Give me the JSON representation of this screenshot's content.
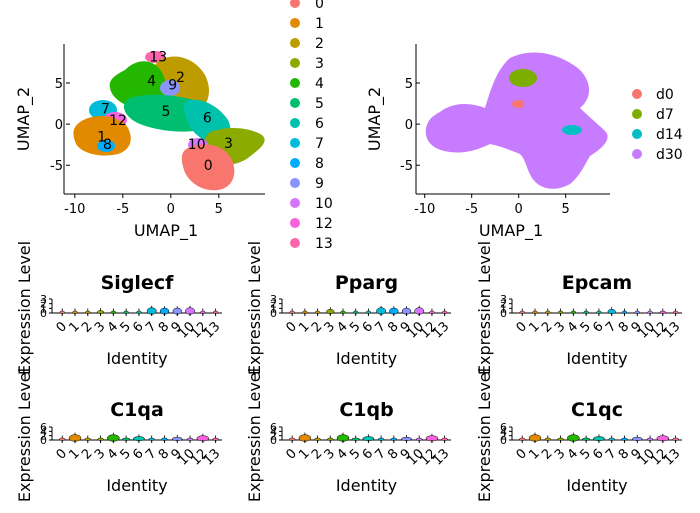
{
  "chart_data": [
    {
      "type": "scatter",
      "panel": "umap-clusters",
      "xlabel": "UMAP_1",
      "ylabel": "UMAP_2",
      "xlim": [
        -10.5,
        9.5
      ],
      "ylim": [
        -8.5,
        9.5
      ],
      "xticks": [
        -10,
        -5,
        0,
        5
      ],
      "xtick_labels": [
        "-10",
        "-5",
        "0",
        "5"
      ],
      "yticks": [
        -5,
        0,
        5
      ],
      "ytick_labels": [
        "-5",
        "0",
        "5"
      ],
      "legend_placement": "top-center",
      "legend": [
        {
          "label": "0",
          "color": "#F8766D"
        },
        {
          "label": "1",
          "color": "#E18A00"
        },
        {
          "label": "2",
          "color": "#BE9C00"
        },
        {
          "label": "3",
          "color": "#8CAB00"
        },
        {
          "label": "4",
          "color": "#24B700"
        },
        {
          "label": "5",
          "color": "#00BE70"
        },
        {
          "label": "6",
          "color": "#00C1AB"
        },
        {
          "label": "7",
          "color": "#00BBDA"
        },
        {
          "label": "8",
          "color": "#00ACFC"
        },
        {
          "label": "9",
          "color": "#8B93FF"
        },
        {
          "label": "10",
          "color": "#D575FE"
        },
        {
          "label": "12",
          "color": "#F962DD"
        },
        {
          "label": "13",
          "color": "#FF65AC"
        }
      ],
      "cluster_labels": [
        {
          "label": "13",
          "x": -1.3,
          "y": 8.2,
          "color": "#FF65AC"
        },
        {
          "label": "2",
          "x": 1.0,
          "y": 5.7,
          "color": "#BE9C00"
        },
        {
          "label": "4",
          "x": -2.0,
          "y": 5.3,
          "color": "#24B700"
        },
        {
          "label": "9",
          "x": 0.2,
          "y": 4.8,
          "color": "#8B93FF"
        },
        {
          "label": "7",
          "x": -6.8,
          "y": 1.9,
          "color": "#00BBDA"
        },
        {
          "label": "5",
          "x": -0.5,
          "y": 1.6,
          "color": "#00BE70"
        },
        {
          "label": "12",
          "x": -5.5,
          "y": 0.5,
          "color": "#F962DD"
        },
        {
          "label": "6",
          "x": 3.8,
          "y": 0.8,
          "color": "#00C1AB"
        },
        {
          "label": "1",
          "x": -7.2,
          "y": -1.5,
          "color": "#E18A00"
        },
        {
          "label": "8",
          "x": -6.6,
          "y": -2.4,
          "color": "#00ACFC"
        },
        {
          "label": "10",
          "x": 2.7,
          "y": -2.4,
          "color": "#D575FE"
        },
        {
          "label": "3",
          "x": 6.0,
          "y": -2.3,
          "color": "#8CAB00"
        },
        {
          "label": "0",
          "x": 3.9,
          "y": -5.0,
          "color": "#F8766D"
        }
      ]
    },
    {
      "type": "scatter",
      "panel": "umap-timepoints",
      "xlabel": "UMAP_1",
      "ylabel": "UMAP_2",
      "xlim": [
        -10.5,
        9.5
      ],
      "ylim": [
        -8.5,
        9.5
      ],
      "xticks": [
        -10,
        -5,
        0,
        5
      ],
      "xtick_labels": [
        "-10",
        "-5",
        "0",
        "5"
      ],
      "yticks": [
        -5,
        0,
        5
      ],
      "ytick_labels": [
        "-5",
        "0",
        "5"
      ],
      "legend_placement": "right",
      "legend": [
        {
          "label": "d0",
          "color": "#F8766D"
        },
        {
          "label": "d7",
          "color": "#7CAE00"
        },
        {
          "label": "d14",
          "color": "#00BFC4"
        },
        {
          "label": "d30",
          "color": "#C77CFF"
        }
      ]
    },
    {
      "type": "violin",
      "panel": "Siglecf",
      "title": "Siglecf",
      "xlabel": "Identity",
      "ylabel": "Expression Level",
      "categories": [
        "0",
        "1",
        "2",
        "3",
        "4",
        "5",
        "6",
        "7",
        "8",
        "9",
        "10",
        "12",
        "13"
      ],
      "yticks": [
        0,
        1,
        2,
        3
      ],
      "ytick_labels": [
        "0",
        "1",
        "2",
        "3"
      ],
      "ymax": 3,
      "violin_heights": [
        0.1,
        0.1,
        0.1,
        0.4,
        0.1,
        0.1,
        0.1,
        0.9,
        0.8,
        0.8,
        0.9,
        0.1,
        0.1
      ]
    },
    {
      "type": "violin",
      "panel": "Pparg",
      "title": "Pparg",
      "xlabel": "Identity",
      "ylabel": "Expression Level",
      "categories": [
        "0",
        "1",
        "2",
        "3",
        "4",
        "5",
        "6",
        "7",
        "8",
        "9",
        "10",
        "12",
        "13"
      ],
      "yticks": [
        0,
        1,
        2,
        3
      ],
      "ytick_labels": [
        "0",
        "1",
        "2",
        "3"
      ],
      "ymax": 3,
      "violin_heights": [
        0.1,
        0.1,
        0.1,
        0.6,
        0.1,
        0.1,
        0.1,
        0.9,
        0.8,
        0.8,
        0.9,
        0.1,
        0.1
      ]
    },
    {
      "type": "violin",
      "panel": "Epcam",
      "title": "Epcam",
      "xlabel": "Identity",
      "ylabel": "Expression Level",
      "categories": [
        "0",
        "1",
        "2",
        "3",
        "4",
        "5",
        "6",
        "7",
        "8",
        "9",
        "10",
        "12",
        "13"
      ],
      "yticks": [
        0,
        1,
        2,
        3
      ],
      "ytick_labels": [
        "0",
        "1",
        "2",
        "3"
      ],
      "ymax": 3,
      "violin_heights": [
        0.1,
        0.1,
        0.1,
        0.1,
        0.1,
        0.1,
        0.1,
        0.6,
        0.1,
        0.1,
        0.1,
        0.3,
        0.1
      ]
    },
    {
      "type": "violin",
      "panel": "C1qa",
      "title": "C1qa",
      "xlabel": "Identity",
      "ylabel": "Expression Level",
      "categories": [
        "0",
        "1",
        "2",
        "3",
        "4",
        "5",
        "6",
        "7",
        "8",
        "9",
        "10",
        "12",
        "13"
      ],
      "yticks": [
        0,
        2,
        4,
        6
      ],
      "ytick_labels": [
        "0",
        "2",
        "4",
        "6"
      ],
      "ymax": 6,
      "violin_heights": [
        0.3,
        2.0,
        0.3,
        0.3,
        2.0,
        0.6,
        1.2,
        0.3,
        0.3,
        1.0,
        0.3,
        1.5,
        0.3
      ]
    },
    {
      "type": "violin",
      "panel": "C1qb",
      "title": "C1qb",
      "xlabel": "Identity",
      "ylabel": "Expression Level",
      "categories": [
        "0",
        "1",
        "2",
        "3",
        "4",
        "5",
        "6",
        "7",
        "8",
        "9",
        "10",
        "12",
        "13"
      ],
      "yticks": [
        0,
        2,
        4,
        6
      ],
      "ytick_labels": [
        "0",
        "2",
        "4",
        "6"
      ],
      "ymax": 6,
      "violin_heights": [
        0.3,
        2.0,
        0.3,
        0.3,
        2.0,
        0.6,
        1.2,
        0.3,
        0.3,
        1.0,
        0.3,
        1.5,
        0.3
      ]
    },
    {
      "type": "violin",
      "panel": "C1qc",
      "title": "C1qc",
      "xlabel": "Identity",
      "ylabel": "Expression Level",
      "categories": [
        "0",
        "1",
        "2",
        "3",
        "4",
        "5",
        "6",
        "7",
        "8",
        "9",
        "10",
        "12",
        "13"
      ],
      "yticks": [
        0,
        2,
        4,
        6
      ],
      "ytick_labels": [
        "0",
        "2",
        "4",
        "6"
      ],
      "ymax": 6,
      "violin_heights": [
        0.3,
        2.0,
        0.3,
        0.3,
        2.0,
        0.6,
        1.2,
        0.3,
        0.3,
        1.0,
        0.3,
        1.5,
        0.3
      ]
    }
  ],
  "violin_colors": [
    "#F8766D",
    "#E18A00",
    "#BE9C00",
    "#8CAB00",
    "#24B700",
    "#00BE70",
    "#00C1AB",
    "#00BBDA",
    "#00ACFC",
    "#8B93FF",
    "#D575FE",
    "#F962DD",
    "#FF65AC"
  ]
}
